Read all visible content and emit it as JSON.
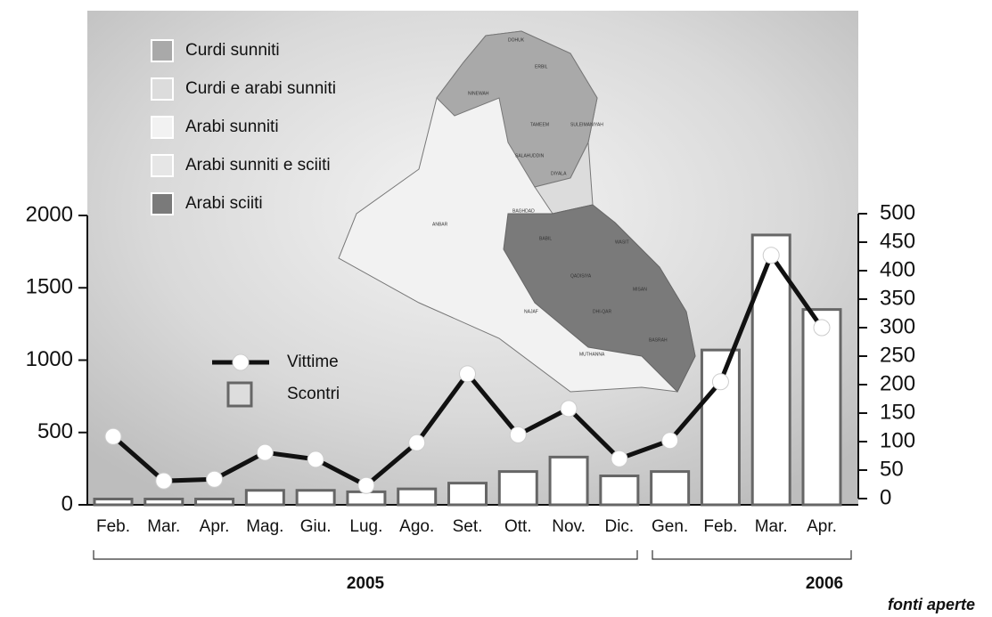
{
  "chart_data": {
    "type": "bar_line",
    "categories": [
      "Feb.",
      "Mar.",
      "Apr.",
      "Mag.",
      "Giu.",
      "Lug.",
      "Ago.",
      "Set.",
      "Ott.",
      "Nov.",
      "Dic.",
      "Gen.",
      "Feb.",
      "Mar.",
      "Apr."
    ],
    "series": [
      {
        "name": "Scontri",
        "type": "bar",
        "color": "#ffffff",
        "values": [
          40,
          40,
          40,
          100,
          100,
          90,
          110,
          150,
          230,
          330,
          200,
          230,
          1070,
          1865,
          1350
        ]
      },
      {
        "name": "Vittime",
        "type": "line",
        "axis": "y2",
        "color": "#111111",
        "values": [
          109,
          31,
          34,
          81,
          69,
          23,
          98,
          219,
          112,
          158,
          70,
          102,
          205,
          427,
          300
        ]
      }
    ],
    "ylim": [
      0,
      2000
    ],
    "yticks": [
      0,
      500,
      1000,
      1500,
      2000
    ],
    "y2lim": [
      0,
      500
    ],
    "y2ticks": [
      0,
      50,
      100,
      150,
      200,
      250,
      300,
      350,
      400,
      450,
      500
    ],
    "year_groups": [
      "2005",
      "2006"
    ],
    "source": "fonti aperte",
    "map_legend": [
      {
        "name": "Curdi sunniti",
        "color": "#a9a9a9"
      },
      {
        "name": "Curdi e arabi sunniti",
        "color": "#dcdcdc"
      },
      {
        "name": "Arabi sunniti",
        "color": "#f2f2f2"
      },
      {
        "name": "Arabi sunniti e sciiti",
        "color": "#e6e6e6"
      },
      {
        "name": "Arabi sciiti",
        "color": "#7a7a7a"
      }
    ],
    "map_labels": [
      "DOHUK",
      "ERBIL",
      "NINEWAH",
      "TAMEEM",
      "SULEIMANIYAH",
      "SALAHUDDIN",
      "DIYALA",
      "ANBAR",
      "BAGHDAD",
      "BABIL",
      "WASIT",
      "QADISIYA",
      "NAJAF",
      "MISAN",
      "DHI-QAR",
      "MUTHANNA",
      "BASRAH"
    ]
  }
}
